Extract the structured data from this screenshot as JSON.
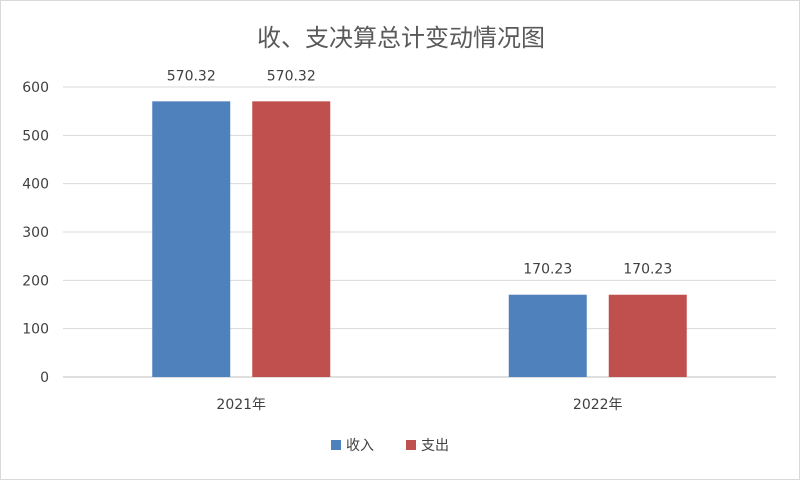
{
  "chart_data": {
    "type": "bar",
    "title": "收、支决算总计变动情况图",
    "categories": [
      "2021年",
      "2022年"
    ],
    "series": [
      {
        "name": "收入",
        "values": [
          570.32,
          170.23
        ],
        "color": "#4f81bd"
      },
      {
        "name": "支出",
        "values": [
          570.32,
          170.23
        ],
        "color": "#c0504d"
      }
    ],
    "data_labels": [
      [
        "570.32",
        "170.23"
      ],
      [
        "570.32",
        "170.23"
      ]
    ],
    "ylim": [
      0,
      600
    ],
    "yticks": [
      0,
      100,
      200,
      300,
      400,
      500,
      600
    ],
    "grid": true,
    "legend_position": "bottom"
  }
}
